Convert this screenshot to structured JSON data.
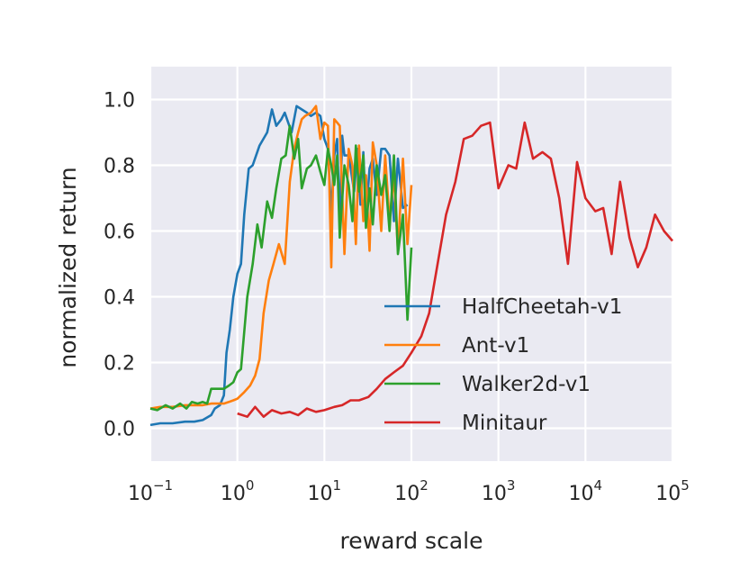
{
  "chart_data": {
    "type": "line",
    "title": "",
    "xlabel": "reward scale",
    "ylabel": "normalized return",
    "xscale": "log",
    "xlim": [
      0.1,
      100000
    ],
    "ylim": [
      -0.1,
      1.1
    ],
    "grid": true,
    "legend_position": "center-right",
    "x_ticks": [
      {
        "base": "10",
        "exp": "−1"
      },
      {
        "base": "10",
        "exp": "0"
      },
      {
        "base": "10",
        "exp": "1"
      },
      {
        "base": "10",
        "exp": "2"
      },
      {
        "base": "10",
        "exp": "3"
      },
      {
        "base": "10",
        "exp": "4"
      },
      {
        "base": "10",
        "exp": "5"
      }
    ],
    "y_ticks": [
      "0.0",
      "0.2",
      "0.4",
      "0.6",
      "0.8",
      "1.0"
    ],
    "series": [
      {
        "name": "HalfCheetah-v1",
        "color": "#1f77b4",
        "x": [
          0.1,
          0.13,
          0.18,
          0.25,
          0.32,
          0.4,
          0.5,
          0.55,
          0.63,
          0.7,
          0.75,
          0.82,
          0.9,
          1.0,
          1.1,
          1.2,
          1.35,
          1.5,
          1.8,
          2.2,
          2.5,
          2.8,
          3.2,
          3.5,
          4.2,
          4.8,
          5.5,
          6.3,
          7.0,
          8.0,
          9.0,
          10,
          11,
          12,
          13,
          14,
          15,
          16,
          17,
          19,
          22,
          24,
          26,
          28,
          30,
          33,
          36,
          40,
          45,
          50,
          56,
          63,
          70,
          80,
          90
        ],
        "y": [
          0.01,
          0.015,
          0.015,
          0.02,
          0.02,
          0.025,
          0.04,
          0.06,
          0.07,
          0.1,
          0.23,
          0.3,
          0.4,
          0.47,
          0.5,
          0.65,
          0.79,
          0.8,
          0.86,
          0.9,
          0.97,
          0.92,
          0.94,
          0.96,
          0.9,
          0.98,
          0.97,
          0.96,
          0.95,
          0.96,
          0.95,
          0.88,
          0.85,
          0.65,
          0.83,
          0.88,
          0.62,
          0.89,
          0.83,
          0.83,
          0.72,
          0.85,
          0.68,
          0.84,
          0.64,
          0.79,
          0.82,
          0.71,
          0.85,
          0.85,
          0.83,
          0.63,
          0.82,
          0.67,
          0.68
        ]
      },
      {
        "name": "Ant-v1",
        "color": "#ff7f0e",
        "x": [
          0.1,
          0.13,
          0.18,
          0.25,
          0.32,
          0.4,
          0.5,
          0.6,
          0.7,
          0.8,
          0.9,
          1.0,
          1.2,
          1.4,
          1.6,
          1.8,
          2.0,
          2.3,
          2.6,
          3.0,
          3.5,
          4.0,
          4.5,
          5.0,
          5.5,
          6.0,
          7.0,
          8.0,
          9.0,
          10,
          11,
          12,
          13,
          14,
          15,
          17,
          19,
          21,
          23,
          25,
          28,
          30,
          33,
          36,
          40,
          45,
          50,
          56,
          63,
          70,
          80,
          90,
          100
        ],
        "y": [
          0.06,
          0.065,
          0.065,
          0.07,
          0.07,
          0.07,
          0.075,
          0.075,
          0.075,
          0.08,
          0.085,
          0.09,
          0.11,
          0.13,
          0.16,
          0.21,
          0.35,
          0.45,
          0.5,
          0.56,
          0.5,
          0.75,
          0.85,
          0.9,
          0.94,
          0.95,
          0.96,
          0.98,
          0.88,
          0.93,
          0.92,
          0.49,
          0.94,
          0.93,
          0.92,
          0.53,
          0.85,
          0.8,
          0.56,
          0.86,
          0.63,
          0.77,
          0.54,
          0.87,
          0.8,
          0.6,
          0.83,
          0.63,
          0.77,
          0.54,
          0.82,
          0.56,
          0.74
        ]
      },
      {
        "name": "Walker2d-v1",
        "color": "#2ca02c",
        "x": [
          0.1,
          0.12,
          0.15,
          0.18,
          0.22,
          0.26,
          0.3,
          0.35,
          0.4,
          0.45,
          0.5,
          0.6,
          0.7,
          0.8,
          0.9,
          1.0,
          1.1,
          1.3,
          1.5,
          1.7,
          1.9,
          2.2,
          2.5,
          2.8,
          3.2,
          3.6,
          4.0,
          4.5,
          5.0,
          5.5,
          6.3,
          7.0,
          8.0,
          9.0,
          10,
          11,
          12,
          13,
          14,
          15,
          17,
          19,
          21,
          23,
          25,
          28,
          30,
          33,
          36,
          40,
          45,
          50,
          56,
          63,
          70,
          80,
          90,
          100
        ],
        "y": [
          0.06,
          0.055,
          0.07,
          0.06,
          0.075,
          0.06,
          0.08,
          0.075,
          0.08,
          0.075,
          0.12,
          0.12,
          0.12,
          0.13,
          0.14,
          0.17,
          0.18,
          0.4,
          0.5,
          0.62,
          0.55,
          0.69,
          0.64,
          0.73,
          0.82,
          0.83,
          0.92,
          0.82,
          0.88,
          0.73,
          0.79,
          0.8,
          0.83,
          0.78,
          0.74,
          0.85,
          0.8,
          0.74,
          0.83,
          0.58,
          0.8,
          0.74,
          0.63,
          0.86,
          0.72,
          0.83,
          0.61,
          0.73,
          0.62,
          0.8,
          0.71,
          0.77,
          0.6,
          0.83,
          0.53,
          0.65,
          0.33,
          0.55
        ]
      },
      {
        "name": "Minitaur",
        "color": "#d62728",
        "x": [
          1.0,
          1.3,
          1.6,
          2.0,
          2.5,
          3.2,
          4.0,
          5.0,
          6.3,
          8.0,
          10,
          13,
          16,
          20,
          25,
          32,
          40,
          50,
          63,
          80,
          100,
          130,
          160,
          200,
          250,
          320,
          400,
          500,
          630,
          800,
          1000,
          1300,
          1600,
          2000,
          2500,
          3200,
          4000,
          5000,
          6300,
          8000,
          10000,
          13000,
          16000,
          20000,
          25000,
          32000,
          40000,
          50000,
          63000,
          80000,
          100000
        ],
        "y": [
          0.045,
          0.035,
          0.065,
          0.035,
          0.055,
          0.045,
          0.05,
          0.04,
          0.06,
          0.05,
          0.055,
          0.065,
          0.07,
          0.085,
          0.085,
          0.095,
          0.12,
          0.15,
          0.17,
          0.19,
          0.23,
          0.28,
          0.35,
          0.5,
          0.65,
          0.75,
          0.88,
          0.89,
          0.92,
          0.93,
          0.73,
          0.8,
          0.79,
          0.93,
          0.82,
          0.84,
          0.82,
          0.7,
          0.5,
          0.81,
          0.7,
          0.66,
          0.67,
          0.53,
          0.75,
          0.58,
          0.49,
          0.55,
          0.65,
          0.6,
          0.57
        ]
      }
    ]
  }
}
